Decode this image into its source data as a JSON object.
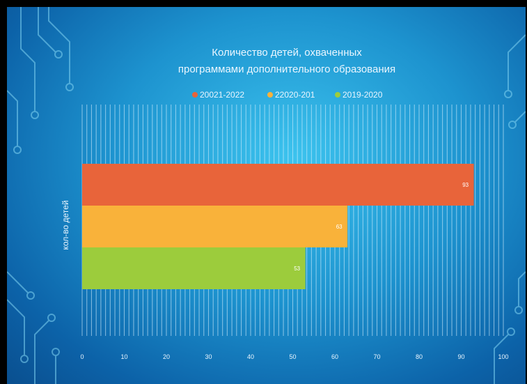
{
  "chart_data": {
    "type": "bar",
    "orientation": "horizontal",
    "title": [
      "Количество детей, охваченных",
      "программами дополнительного образования"
    ],
    "ylabel": "кол-во детей",
    "xlabel": "",
    "xlim": [
      0,
      100
    ],
    "x_ticks": [
      0,
      10,
      20,
      30,
      40,
      50,
      60,
      70,
      80,
      90,
      100
    ],
    "grid": true,
    "legend_position": "top",
    "series": [
      {
        "name": "20021-2022",
        "value": 93,
        "color": "#e8643a"
      },
      {
        "name": "22020-201",
        "value": 63,
        "color": "#f9b23a"
      },
      {
        "name": "2019-2020",
        "value": 53,
        "color": "#9ccc3c"
      }
    ]
  }
}
